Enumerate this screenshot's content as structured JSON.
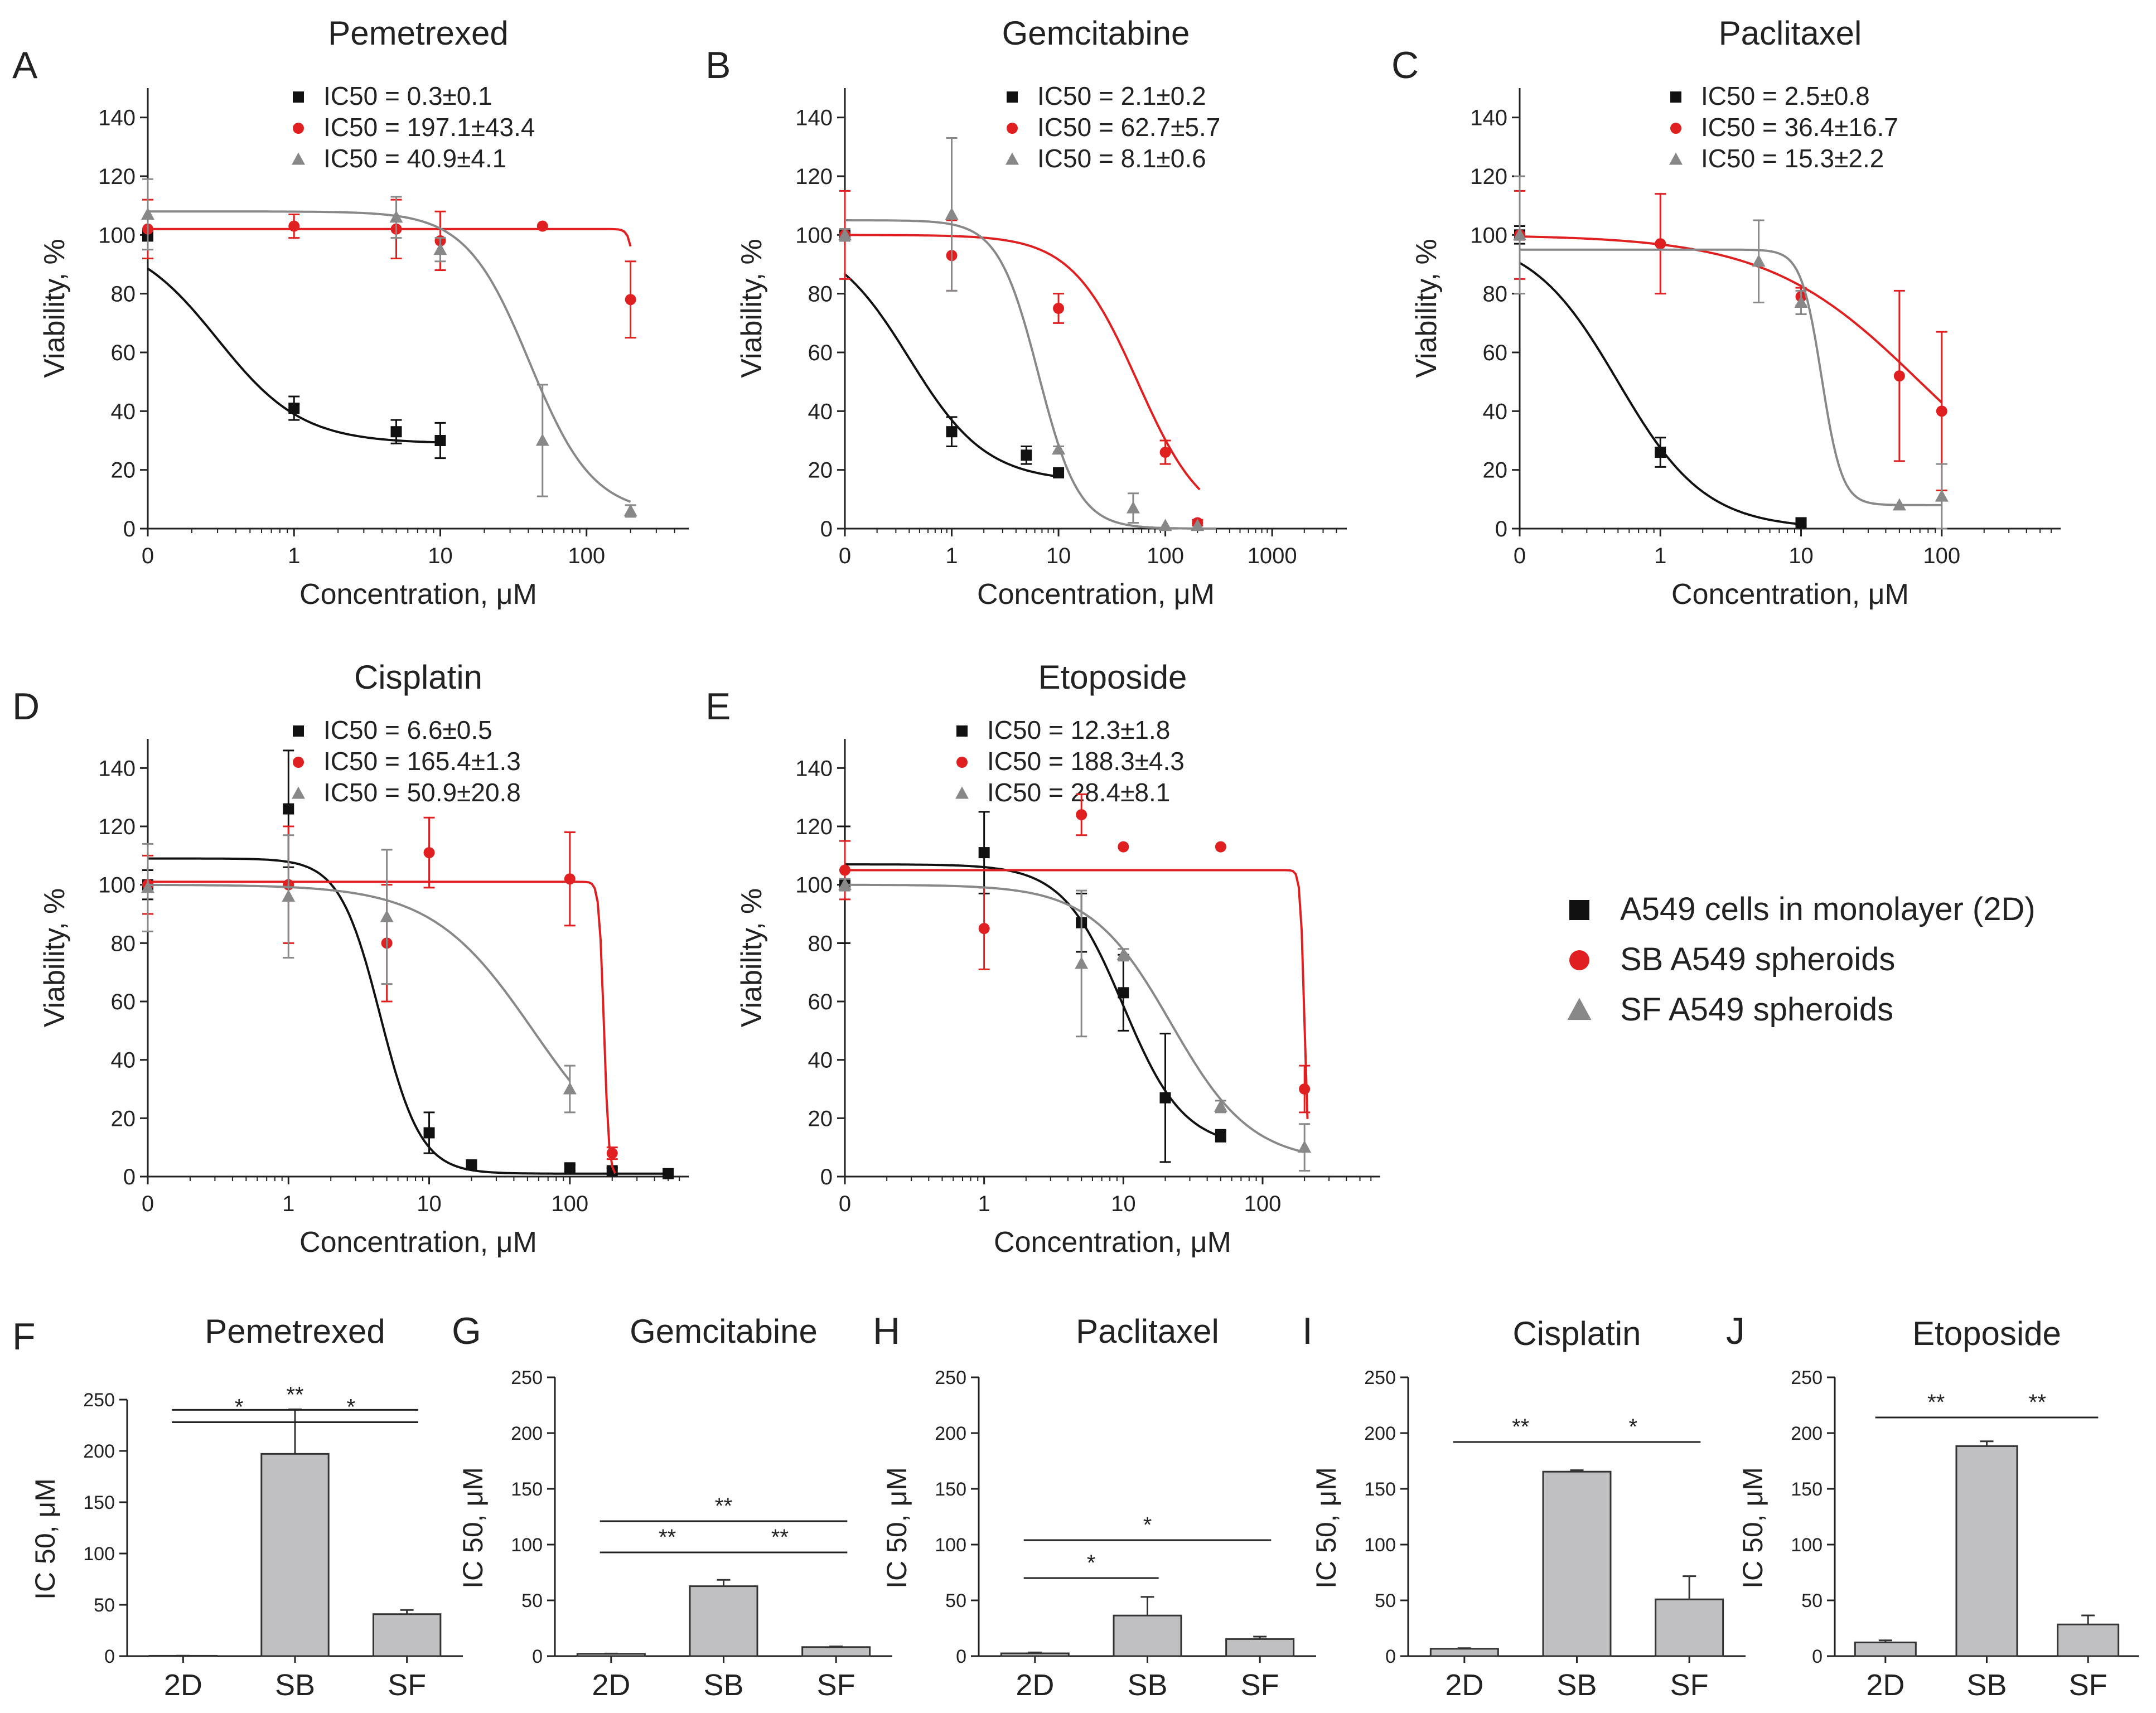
{
  "colors": {
    "mono": "#111111",
    "sb": "#e02020",
    "sf": "#888888",
    "bar": "#c0c0c2",
    "axis": "#222222"
  },
  "axis_text": {
    "xlabel": "Concentration, μM",
    "ylabel": "Viability, %",
    "bar_ylabel": "IC 50, μM"
  },
  "legend": [
    {
      "key": "mono",
      "marker": "square",
      "label": "A549 cells in monolayer (2D)"
    },
    {
      "key": "sb",
      "marker": "circle",
      "label": "SB A549 spheroids"
    },
    {
      "key": "sf",
      "marker": "triangle",
      "label": "SF A549 spheroids"
    }
  ],
  "chart_data": [
    {
      "type": "line",
      "panel": "A",
      "title": "Pemetrexed",
      "xscale": "log",
      "xlim": [
        0.1,
        500
      ],
      "ylim": [
        0,
        150
      ],
      "xticks": [
        {
          "v": 0.1,
          "t": "0"
        },
        {
          "v": 1,
          "t": "1"
        },
        {
          "v": 10,
          "t": "10"
        },
        {
          "v": 100,
          "t": "100"
        }
      ],
      "yticks": [
        0,
        20,
        40,
        60,
        80,
        100,
        120,
        140
      ],
      "ic50": [
        {
          "key": "mono",
          "text": "IC50 = 0.3±0.1"
        },
        {
          "key": "sb",
          "text": "IC50 = 197.1±43.4"
        },
        {
          "key": "sf",
          "text": "IC50 = 40.9±4.1"
        }
      ],
      "series": [
        {
          "key": "mono",
          "points": [
            [
              0.1,
              100,
              2
            ],
            [
              1,
              41,
              4
            ],
            [
              5,
              33,
              4
            ],
            [
              10,
              30,
              6
            ]
          ],
          "fit": {
            "top": 100,
            "bottom": 29,
            "ic50": 0.3,
            "hill": 1.5,
            "xmax": 10
          }
        },
        {
          "key": "sb",
          "points": [
            [
              0.1,
              102,
              10
            ],
            [
              1,
              103,
              4
            ],
            [
              5,
              102,
              10
            ],
            [
              10,
              98,
              10
            ],
            [
              50,
              103,
              0
            ],
            [
              200,
              78,
              13
            ]
          ],
          "fit": {
            "top": 102,
            "bottom": 0,
            "ic50": 230,
            "hill": 20,
            "xmax": 200
          }
        },
        {
          "key": "sf",
          "points": [
            [
              0.1,
              107,
              12
            ],
            [
              5,
              106,
              7
            ],
            [
              10,
              95,
              4
            ],
            [
              50,
              30,
              19
            ],
            [
              200,
              6,
              2
            ]
          ],
          "fit": {
            "top": 108,
            "bottom": 5,
            "ic50": 40.9,
            "hill": 2,
            "xmax": 200
          }
        }
      ]
    },
    {
      "type": "line",
      "panel": "B",
      "title": "Gemcitabine",
      "xscale": "log",
      "xlim": [
        0.1,
        5000
      ],
      "ylim": [
        0,
        150
      ],
      "xticks": [
        {
          "v": 0.1,
          "t": "0"
        },
        {
          "v": 1,
          "t": "1"
        },
        {
          "v": 10,
          "t": "10"
        },
        {
          "v": 100,
          "t": "100"
        },
        {
          "v": 1000,
          "t": "1000"
        }
      ],
      "yticks": [
        0,
        20,
        40,
        60,
        80,
        100,
        120,
        140
      ],
      "ic50": [
        {
          "key": "mono",
          "text": "IC50 = 2.1±0.2"
        },
        {
          "key": "sb",
          "text": "IC50 = 62.7±5.7"
        },
        {
          "key": "sf",
          "text": "IC50 = 8.1±0.6"
        }
      ],
      "series": [
        {
          "key": "mono",
          "points": [
            [
              0.1,
              100,
              2
            ],
            [
              1,
              33,
              5
            ],
            [
              5,
              25,
              3
            ],
            [
              10,
              19,
              1
            ]
          ],
          "fit": {
            "top": 100,
            "bottom": 16,
            "ic50": 0.4,
            "hill": 1.2,
            "xmax": 10
          }
        },
        {
          "key": "sb",
          "points": [
            [
              0.1,
              100,
              15
            ],
            [
              1,
              93,
              12
            ],
            [
              10,
              75,
              5
            ],
            [
              100,
              26,
              4
            ],
            [
              200,
              2,
              1
            ]
          ],
          "fit": {
            "top": 100,
            "bottom": 0,
            "ic50": 55,
            "hill": 1.4,
            "xmax": 210
          }
        },
        {
          "key": "sf",
          "points": [
            [
              0.1,
              100,
              2
            ],
            [
              1,
              107,
              26
            ],
            [
              10,
              27,
              1
            ],
            [
              50,
              7,
              5
            ],
            [
              100,
              1,
              0
            ],
            [
              200,
              1,
              0
            ]
          ],
          "fit": {
            "top": 105,
            "bottom": 0,
            "ic50": 6.5,
            "hill": 2.3,
            "xmax": 300
          }
        }
      ]
    },
    {
      "type": "line",
      "panel": "C",
      "title": "Paclitaxel",
      "xscale": "log",
      "xlim": [
        0.1,
        700
      ],
      "ylim": [
        0,
        150
      ],
      "xticks": [
        {
          "v": 0.1,
          "t": "0"
        },
        {
          "v": 1,
          "t": "1"
        },
        {
          "v": 10,
          "t": "10"
        },
        {
          "v": 100,
          "t": "100"
        }
      ],
      "yticks": [
        0,
        20,
        40,
        60,
        80,
        100,
        120,
        140
      ],
      "ic50": [
        {
          "key": "mono",
          "text": "IC50 = 2.5±0.8"
        },
        {
          "key": "sb",
          "text": "IC50 = 36.4±16.7"
        },
        {
          "key": "sf",
          "text": "IC50 = 15.3±2.2"
        }
      ],
      "series": [
        {
          "key": "mono",
          "points": [
            [
              0.1,
              100,
              3
            ],
            [
              1,
              26,
              5
            ],
            [
              10,
              2,
              1
            ]
          ],
          "fit": {
            "top": 100,
            "bottom": 0,
            "ic50": 0.5,
            "hill": 1.4,
            "xmax": 10
          }
        },
        {
          "key": "sb",
          "points": [
            [
              0.1,
              100,
              15
            ],
            [
              1,
              97,
              17
            ],
            [
              10,
              79,
              3
            ],
            [
              50,
              52,
              29
            ],
            [
              100,
              40,
              27
            ]
          ],
          "fit": {
            "top": 100,
            "bottom": 0,
            "ic50": 70,
            "hill": 0.8,
            "xmax": 100
          }
        },
        {
          "key": "sf",
          "points": [
            [
              0.1,
              100,
              20
            ],
            [
              5,
              91,
              14
            ],
            [
              10,
              77,
              4
            ],
            [
              50,
              8,
              0
            ],
            [
              100,
              11,
              11
            ]
          ],
          "fit": {
            "top": 95,
            "bottom": 8,
            "ic50": 14,
            "hill": 6,
            "xmax": 100
          }
        }
      ]
    },
    {
      "type": "line",
      "panel": "D",
      "title": "Cisplatin",
      "xscale": "log",
      "xlim": [
        0.1,
        700
      ],
      "ylim": [
        0,
        150
      ],
      "xticks": [
        {
          "v": 0.1,
          "t": "0"
        },
        {
          "v": 1,
          "t": "1"
        },
        {
          "v": 10,
          "t": "10"
        },
        {
          "v": 100,
          "t": "100"
        }
      ],
      "yticks": [
        0,
        20,
        40,
        60,
        80,
        100,
        120,
        140
      ],
      "ic50": [
        {
          "key": "mono",
          "text": "IC50 = 6.6±0.5"
        },
        {
          "key": "sb",
          "text": "IC50 = 165.4±1.3"
        },
        {
          "key": "sf",
          "text": "IC50 = 50.9±20.8"
        }
      ],
      "series": [
        {
          "key": "mono",
          "points": [
            [
              0.1,
              100,
              5
            ],
            [
              1,
              126,
              20
            ],
            [
              10,
              15,
              7
            ],
            [
              20,
              4,
              1
            ],
            [
              100,
              3,
              1
            ],
            [
              200,
              2,
              1
            ],
            [
              500,
              1,
              0
            ]
          ],
          "fit": {
            "top": 109,
            "bottom": 1,
            "ic50": 4.5,
            "hill": 3,
            "xmax": 500
          }
        },
        {
          "key": "sb",
          "points": [
            [
              0.1,
              100,
              10
            ],
            [
              1,
              100,
              20
            ],
            [
              5,
              80,
              20
            ],
            [
              10,
              111,
              12
            ],
            [
              100,
              102,
              16
            ],
            [
              200,
              8,
              2
            ]
          ],
          "fit": {
            "top": 101,
            "bottom": 0,
            "ic50": 175,
            "hill": 25,
            "xmax": 210
          }
        },
        {
          "key": "sf",
          "points": [
            [
              0.1,
              99,
              15
            ],
            [
              1,
              96,
              21
            ],
            [
              5,
              89,
              23
            ],
            [
              100,
              30,
              8
            ]
          ],
          "fit": {
            "top": 100,
            "bottom": 0,
            "ic50": 55,
            "hill": 1.2,
            "xmax": 100
          }
        }
      ]
    },
    {
      "type": "line",
      "panel": "E",
      "title": "Etoposide",
      "xscale": "log",
      "xlim": [
        0.1,
        700
      ],
      "ylim": [
        0,
        150
      ],
      "xticks": [
        {
          "v": 0.1,
          "t": "0"
        },
        {
          "v": 1,
          "t": "1"
        },
        {
          "v": 10,
          "t": "10"
        },
        {
          "v": 100,
          "t": "100"
        }
      ],
      "yticks": [
        0,
        20,
        40,
        60,
        80,
        100,
        120,
        140
      ],
      "ic50": [
        {
          "key": "mono",
          "text": "IC50 = 12.3±1.8"
        },
        {
          "key": "sb",
          "text": "IC50 = 188.3±4.3"
        },
        {
          "key": "sf",
          "text": "IC50 = 28.4±8.1"
        }
      ],
      "series": [
        {
          "key": "mono",
          "points": [
            [
              0.1,
              100,
              20
            ],
            [
              1,
              111,
              14
            ],
            [
              5,
              87,
              10
            ],
            [
              10,
              63,
              13
            ],
            [
              20,
              27,
              22
            ],
            [
              50,
              14,
              2
            ]
          ],
          "fit": {
            "top": 107,
            "bottom": 10,
            "ic50": 10,
            "hill": 2,
            "xmax": 50
          }
        },
        {
          "key": "sb",
          "points": [
            [
              0.1,
              105,
              10
            ],
            [
              1,
              85,
              14
            ],
            [
              5,
              124,
              7
            ],
            [
              10,
              113,
              0
            ],
            [
              50,
              113,
              0
            ],
            [
              200,
              30,
              8
            ]
          ],
          "fit": {
            "top": 105,
            "bottom": 0,
            "ic50": 200,
            "hill": 30,
            "xmax": 210
          }
        },
        {
          "key": "sf",
          "points": [
            [
              0.1,
              100,
              2
            ],
            [
              5,
              73,
              25
            ],
            [
              10,
              76,
              2
            ],
            [
              50,
              24,
              2
            ],
            [
              200,
              10,
              8
            ]
          ],
          "fit": {
            "top": 100,
            "bottom": 5,
            "ic50": 22,
            "hill": 1.5,
            "xmax": 200
          }
        }
      ]
    },
    {
      "type": "bar",
      "panel": "F",
      "title": "Pemetrexed",
      "ylim": [
        0,
        250
      ],
      "categories": [
        "2D",
        "SB",
        "SF"
      ],
      "values": [
        0.3,
        197.1,
        40.9
      ],
      "errors": [
        0.1,
        43.4,
        4.1
      ],
      "yticks": [
        0,
        50,
        100,
        150,
        200,
        250
      ],
      "sig": [
        {
          "from": 0,
          "to": 2,
          "y": 240,
          "text": "**"
        },
        {
          "from": 0,
          "to": 1,
          "y": 228,
          "text": "*"
        },
        {
          "from": 1,
          "to": 2,
          "y": 228,
          "text": "*"
        }
      ]
    },
    {
      "type": "bar",
      "panel": "G",
      "title": "Gemcitabine",
      "ylim": [
        0,
        250
      ],
      "categories": [
        "2D",
        "SB",
        "SF"
      ],
      "values": [
        2.1,
        62.7,
        8.1
      ],
      "errors": [
        0.2,
        5.7,
        0.6
      ],
      "yticks": [
        0,
        50,
        100,
        150,
        200,
        250
      ],
      "sig": [
        {
          "from": 0,
          "to": 2,
          "y": 121,
          "text": "**"
        },
        {
          "from": 0,
          "to": 1,
          "y": 93,
          "text": "**"
        },
        {
          "from": 1,
          "to": 2,
          "y": 93,
          "text": "**"
        }
      ]
    },
    {
      "type": "bar",
      "panel": "H",
      "title": "Paclitaxel",
      "ylim": [
        0,
        250
      ],
      "categories": [
        "2D",
        "SB",
        "SF"
      ],
      "values": [
        2.5,
        36.4,
        15.3
      ],
      "errors": [
        0.8,
        16.7,
        2.2
      ],
      "yticks": [
        0,
        50,
        100,
        150,
        200,
        250
      ],
      "sig": [
        {
          "from": 0,
          "to": 2,
          "y": 104,
          "text": "*"
        },
        {
          "from": 0,
          "to": 1,
          "y": 70,
          "text": "*"
        }
      ]
    },
    {
      "type": "bar",
      "panel": "I",
      "title": "Cisplatin",
      "ylim": [
        0,
        250
      ],
      "categories": [
        "2D",
        "SB",
        "SF"
      ],
      "values": [
        6.6,
        165.4,
        50.9
      ],
      "errors": [
        0.5,
        1.3,
        20.8
      ],
      "yticks": [
        0,
        50,
        100,
        150,
        200,
        250
      ],
      "sig": [
        {
          "from": 0,
          "to": 1,
          "y": 192,
          "text": "**"
        },
        {
          "from": 1,
          "to": 2,
          "y": 192,
          "text": "*"
        }
      ]
    },
    {
      "type": "bar",
      "panel": "J",
      "title": "Etoposide",
      "ylim": [
        0,
        250
      ],
      "categories": [
        "2D",
        "SB",
        "SF"
      ],
      "values": [
        12.3,
        188.3,
        28.4
      ],
      "errors": [
        1.8,
        4.3,
        8.1
      ],
      "yticks": [
        0,
        50,
        100,
        150,
        200,
        250
      ],
      "sig": [
        {
          "from": 0,
          "to": 1,
          "y": 214,
          "text": "**"
        },
        {
          "from": 1,
          "to": 2,
          "y": 214,
          "text": "**"
        }
      ]
    }
  ]
}
